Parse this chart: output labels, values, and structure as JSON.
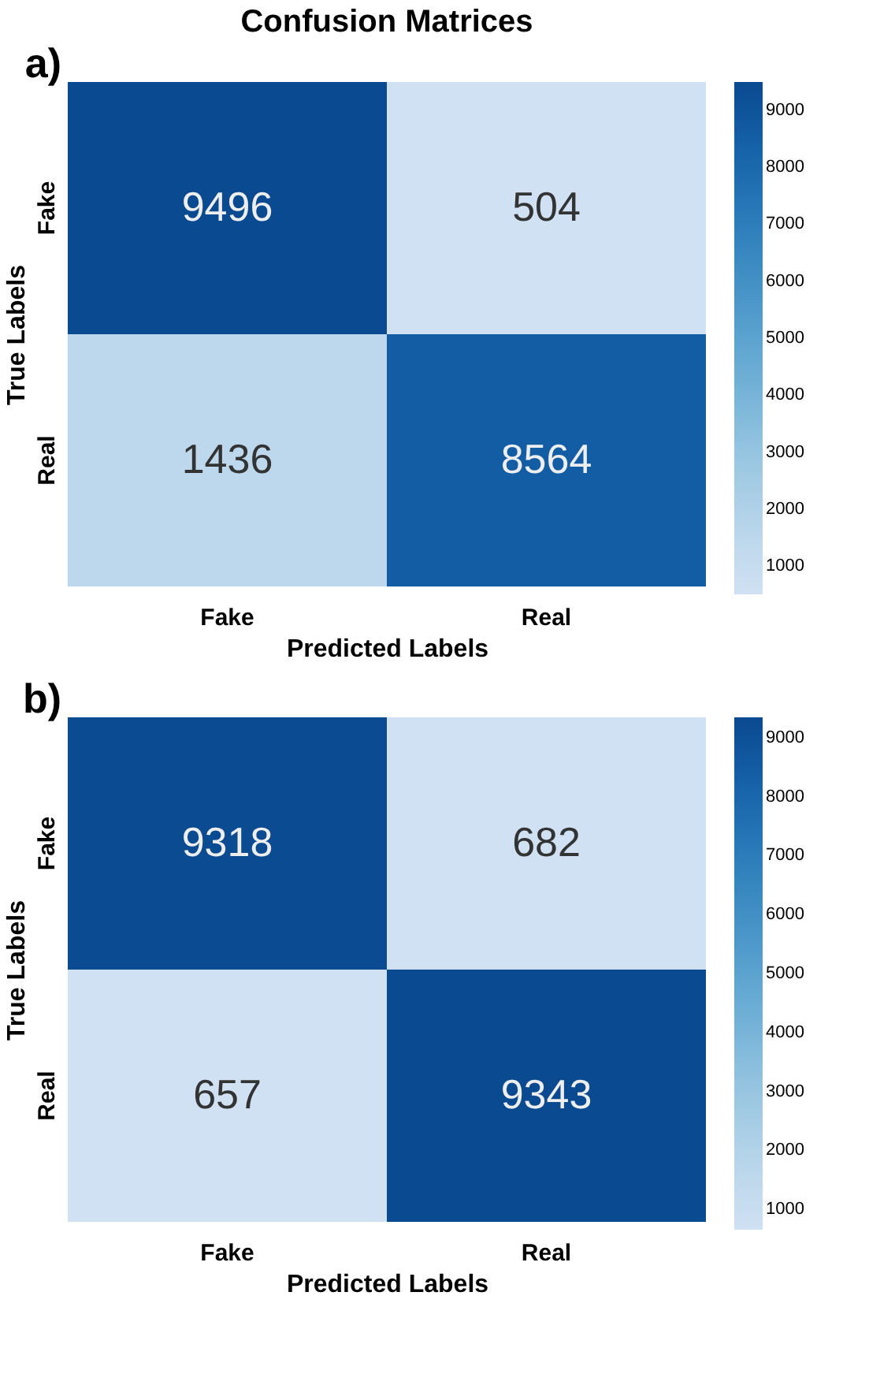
{
  "chart_data": [
    {
      "type": "heatmap",
      "title": "Confusion Matrices",
      "annotations": [
        "a)"
      ],
      "xlabel": "Predicted Labels",
      "ylabel": "True Labels",
      "categories": [
        "Fake",
        "Real"
      ],
      "y_categories": [
        "Fake",
        "Real"
      ],
      "cells": [
        [
          9496,
          504
        ],
        [
          1436,
          8564
        ]
      ],
      "data_labels": true,
      "clim": [
        504,
        9496
      ],
      "cticks": [
        1000,
        2000,
        3000,
        4000,
        5000,
        6000,
        7000,
        8000,
        9000
      ]
    },
    {
      "type": "heatmap",
      "annotations": [
        "b)"
      ],
      "xlabel": "Predicted Labels",
      "ylabel": "True Labels",
      "categories": [
        "Fake",
        "Real"
      ],
      "y_categories": [
        "Fake",
        "Real"
      ],
      "cells": [
        [
          9318,
          682
        ],
        [
          657,
          9343
        ]
      ],
      "data_labels": true,
      "clim": [
        657,
        9343
      ],
      "cticks": [
        1000,
        2000,
        3000,
        4000,
        5000,
        6000,
        7000,
        8000,
        9000
      ]
    }
  ]
}
